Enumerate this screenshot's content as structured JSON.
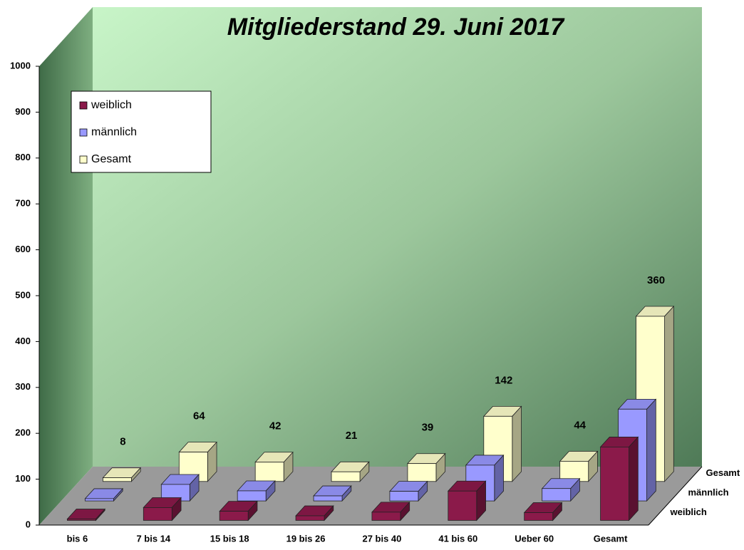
{
  "chart_data": {
    "type": "bar3d",
    "title": "Mitgliederstand 29. Juni 2017",
    "categories": [
      "bis 6",
      "7 bis 14",
      "15 bis 18",
      "19 bis 26",
      "27 bis 40",
      "41 bis 60",
      "Ueber 60",
      "Gesamt"
    ],
    "series": [
      {
        "name": "weiblich",
        "color": "#8b1a4a",
        "values": [
          3,
          28,
          20,
          10,
          18,
          64,
          17,
          160
        ]
      },
      {
        "name": "männlich",
        "color": "#9999ff",
        "values": [
          5,
          36,
          22,
          11,
          21,
          78,
          27,
          200
        ]
      },
      {
        "name": "Gesamt",
        "color": "#ffffcc",
        "values": [
          8,
          64,
          42,
          21,
          39,
          142,
          44,
          360
        ],
        "labels": true
      }
    ],
    "ylim": [
      0,
      1000
    ],
    "yticks": [
      0,
      100,
      200,
      300,
      400,
      500,
      600,
      700,
      800,
      900,
      1000
    ],
    "legend": "top-left"
  }
}
